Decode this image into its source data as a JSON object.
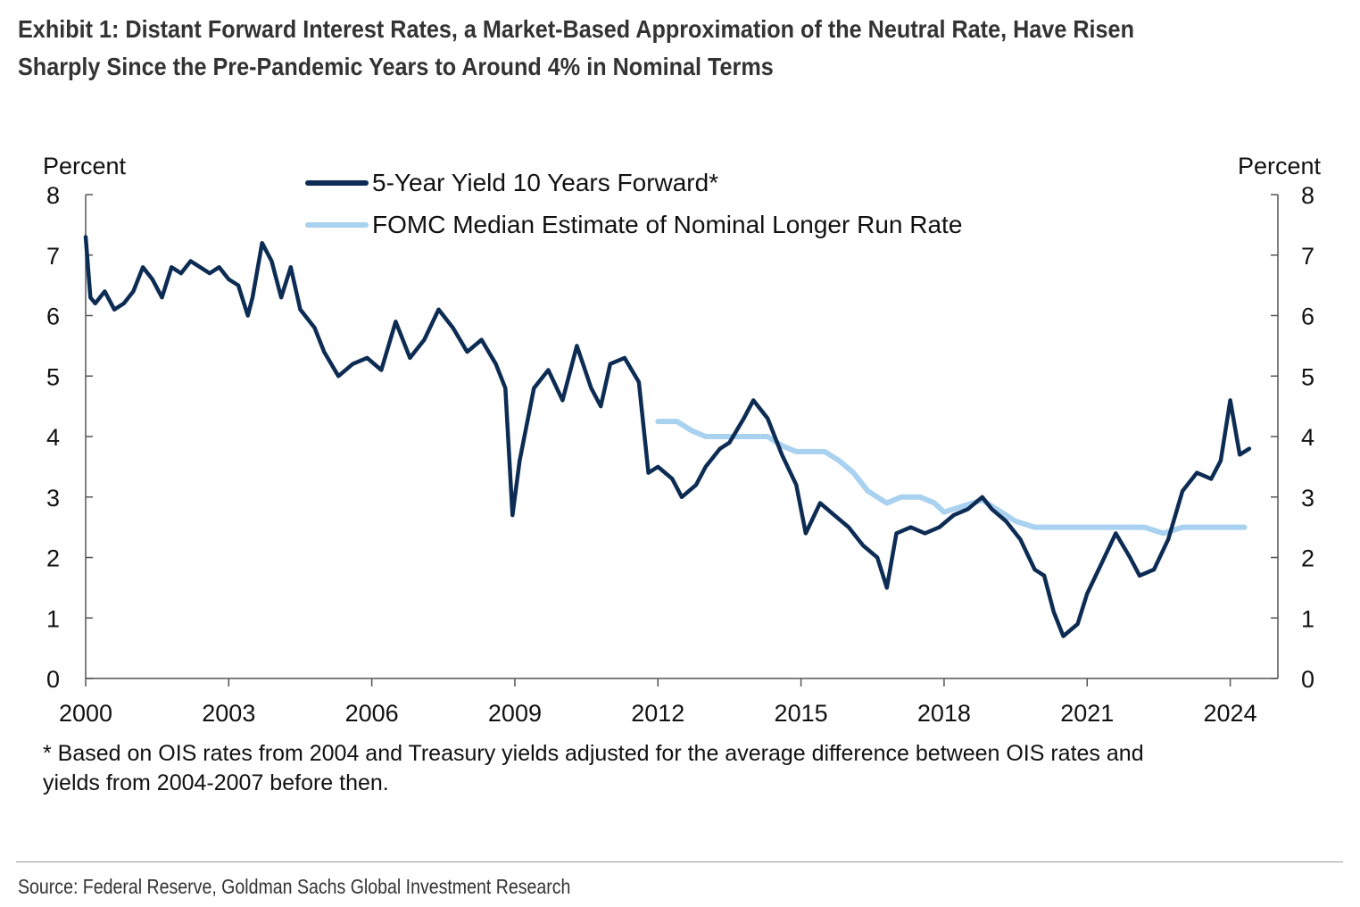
{
  "title": {
    "line1": "Exhibit 1: Distant Forward Interest Rates, a Market-Based Approximation of the Neutral Rate, Have Risen",
    "line2": "Sharply Since the Pre-Pandemic Years to Around 4% in Nominal Terms"
  },
  "footnote": {
    "line1": "* Based on OIS rates from 2004 and Treasury yields adjusted for the average difference between OIS rates and",
    "line2": "yields from 2004-2007 before then."
  },
  "source": "Source: Federal Reserve, Goldman Sachs Global Investment Research",
  "chart_data": {
    "type": "line",
    "ylabel_left": "Percent",
    "ylabel_right": "Percent",
    "ylim": [
      0,
      8
    ],
    "yticks": [
      0,
      1,
      2,
      3,
      4,
      5,
      6,
      7,
      8
    ],
    "xlim": [
      2000,
      2025
    ],
    "xticks": [
      2000,
      2003,
      2006,
      2009,
      2012,
      2015,
      2018,
      2021,
      2024
    ],
    "grid": false,
    "legend_position": "top-center",
    "series": [
      {
        "name": "5-Year Yield 10 Years Forward*",
        "color": "#0d2c54",
        "x": [
          2000.0,
          2000.1,
          2000.2,
          2000.4,
          2000.6,
          2000.8,
          2001.0,
          2001.2,
          2001.4,
          2001.6,
          2001.8,
          2002.0,
          2002.2,
          2002.4,
          2002.6,
          2002.8,
          2003.0,
          2003.2,
          2003.4,
          2003.5,
          2003.7,
          2003.9,
          2004.1,
          2004.3,
          2004.5,
          2004.8,
          2005.0,
          2005.3,
          2005.6,
          2005.9,
          2006.2,
          2006.5,
          2006.8,
          2007.1,
          2007.4,
          2007.7,
          2008.0,
          2008.3,
          2008.6,
          2008.8,
          2008.95,
          2009.1,
          2009.4,
          2009.7,
          2010.0,
          2010.3,
          2010.6,
          2010.8,
          2011.0,
          2011.3,
          2011.6,
          2011.8,
          2012.0,
          2012.3,
          2012.5,
          2012.8,
          2013.0,
          2013.3,
          2013.5,
          2013.8,
          2014.0,
          2014.3,
          2014.6,
          2014.9,
          2015.1,
          2015.4,
          2015.7,
          2016.0,
          2016.3,
          2016.6,
          2016.8,
          2017.0,
          2017.3,
          2017.6,
          2017.9,
          2018.2,
          2018.5,
          2018.8,
          2019.0,
          2019.3,
          2019.6,
          2019.9,
          2020.1,
          2020.3,
          2020.5,
          2020.8,
          2021.0,
          2021.3,
          2021.6,
          2021.9,
          2022.1,
          2022.4,
          2022.7,
          2023.0,
          2023.3,
          2023.6,
          2023.8,
          2024.0,
          2024.2,
          2024.4
        ],
        "y": [
          7.3,
          6.3,
          6.2,
          6.4,
          6.1,
          6.2,
          6.4,
          6.8,
          6.6,
          6.3,
          6.8,
          6.7,
          6.9,
          6.8,
          6.7,
          6.8,
          6.6,
          6.5,
          6.0,
          6.3,
          7.2,
          6.9,
          6.3,
          6.8,
          6.1,
          5.8,
          5.4,
          5.0,
          5.2,
          5.3,
          5.1,
          5.9,
          5.3,
          5.6,
          6.1,
          5.8,
          5.4,
          5.6,
          5.2,
          4.8,
          2.7,
          3.6,
          4.8,
          5.1,
          4.6,
          5.5,
          4.8,
          4.5,
          5.2,
          5.3,
          4.9,
          3.4,
          3.5,
          3.3,
          3.0,
          3.2,
          3.5,
          3.8,
          3.9,
          4.3,
          4.6,
          4.3,
          3.7,
          3.2,
          2.4,
          2.9,
          2.7,
          2.5,
          2.2,
          2.0,
          1.5,
          2.4,
          2.5,
          2.4,
          2.5,
          2.7,
          2.8,
          3.0,
          2.8,
          2.6,
          2.3,
          1.8,
          1.7,
          1.1,
          0.7,
          0.9,
          1.4,
          1.9,
          2.4,
          2.0,
          1.7,
          1.8,
          2.3,
          3.1,
          3.4,
          3.3,
          3.6,
          4.6,
          3.7,
          3.8
        ]
      },
      {
        "name": "FOMC Median Estimate of Nominal Longer Run Rate",
        "color": "#a9d1f0",
        "x": [
          2012.0,
          2012.4,
          2012.7,
          2013.0,
          2013.4,
          2013.7,
          2014.0,
          2014.3,
          2014.6,
          2014.9,
          2015.2,
          2015.5,
          2015.8,
          2016.1,
          2016.4,
          2016.8,
          2017.1,
          2017.5,
          2017.8,
          2018.0,
          2018.4,
          2018.8,
          2019.1,
          2019.5,
          2019.9,
          2020.3,
          2020.8,
          2021.3,
          2021.7,
          2022.2,
          2022.6,
          2023.0,
          2023.5,
          2024.0,
          2024.3
        ],
        "y": [
          4.25,
          4.25,
          4.1,
          4.0,
          4.0,
          4.0,
          4.0,
          4.0,
          3.85,
          3.75,
          3.75,
          3.75,
          3.6,
          3.4,
          3.1,
          2.9,
          3.0,
          3.0,
          2.9,
          2.75,
          2.85,
          2.95,
          2.8,
          2.6,
          2.5,
          2.5,
          2.5,
          2.5,
          2.5,
          2.5,
          2.4,
          2.5,
          2.5,
          2.5,
          2.5
        ]
      }
    ]
  }
}
